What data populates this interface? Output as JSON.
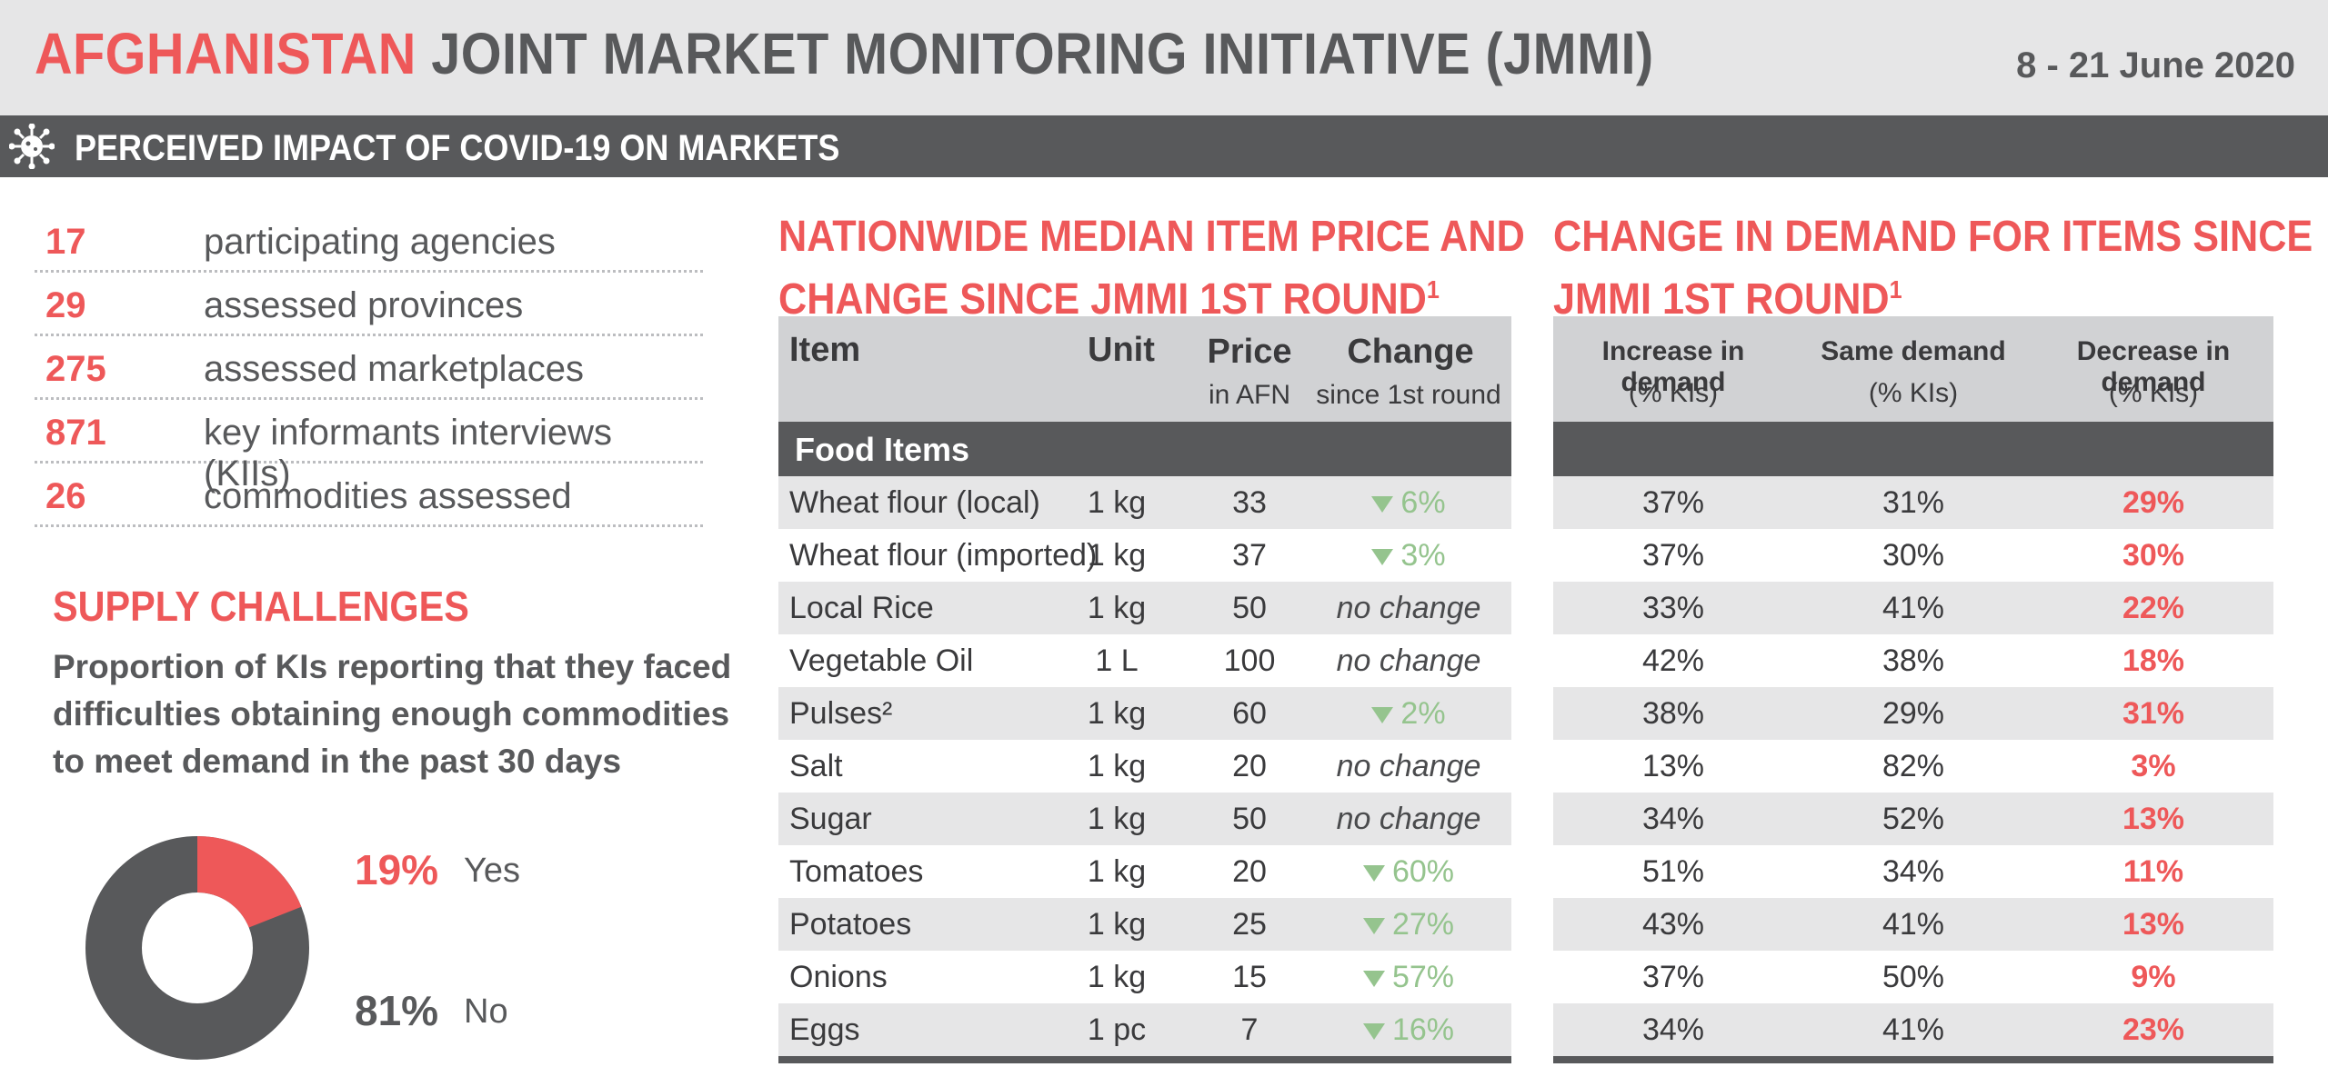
{
  "header": {
    "title_accent": "AFGHANISTAN",
    "title_rest": "JOINT MARKET MONITORING INITIATIVE (JMMI)",
    "date": "8 - 21 June 2020"
  },
  "section": {
    "title": "PERCEIVED IMPACT OF COVID-19 ON MARKETS",
    "icon": "virus-icon"
  },
  "stats": [
    {
      "value": "17",
      "label": "participating agencies"
    },
    {
      "value": "29",
      "label": "assessed provinces"
    },
    {
      "value": "275",
      "label": "assessed marketplaces"
    },
    {
      "value": "871",
      "label": "key informants interviews (KIIs)"
    },
    {
      "value": "26",
      "label": "commodities assessed"
    }
  ],
  "supply": {
    "title": "SUPPLY CHALLENGES",
    "description": "Proportion of KIs reporting that they faced difficulties obtaining enough commodities to meet demand in the past 30 days",
    "yes_pct": "19%",
    "yes_label": "Yes",
    "no_pct": "81%",
    "no_label": "No",
    "yes_value": 0.19,
    "colors": {
      "yes": "#ee5859",
      "no": "#58595b"
    }
  },
  "price_table": {
    "title_line1": "NATIONWIDE MEDIAN ITEM PRICE AND",
    "title_line2": "CHANGE SINCE JMMI 1ST ROUND",
    "title_sup": "1",
    "headers": {
      "item": "Item",
      "unit": "Unit",
      "price": "Price",
      "price_sub": "in AFN",
      "change": "Change",
      "change_sub": "since 1st round"
    },
    "section_label": "Food Items",
    "rows": [
      {
        "item": "Wheat flour (local)",
        "unit": "1 kg",
        "price": "33",
        "change": "6%",
        "decrease": true
      },
      {
        "item": "Wheat flour (imported)",
        "unit": "1 kg",
        "price": "37",
        "change": "3%",
        "decrease": true
      },
      {
        "item": "Local Rice",
        "unit": "1 kg",
        "price": "50",
        "change": "no change",
        "decrease": false
      },
      {
        "item": "Vegetable Oil",
        "unit": "1 L",
        "price": "100",
        "change": "no change",
        "decrease": false
      },
      {
        "item": "Pulses²",
        "unit": "1 kg",
        "price": "60",
        "change": "2%",
        "decrease": true
      },
      {
        "item": "Salt",
        "unit": "1 kg",
        "price": "20",
        "change": "no change",
        "decrease": false
      },
      {
        "item": "Sugar",
        "unit": "1 kg",
        "price": "50",
        "change": "no change",
        "decrease": false
      },
      {
        "item": "Tomatoes",
        "unit": "1 kg",
        "price": "20",
        "change": "60%",
        "decrease": true
      },
      {
        "item": "Potatoes",
        "unit": "1 kg",
        "price": "25",
        "change": "27%",
        "decrease": true
      },
      {
        "item": "Onions",
        "unit": "1 kg",
        "price": "15",
        "change": "57%",
        "decrease": true
      },
      {
        "item": "Eggs",
        "unit": "1 pc",
        "price": "7",
        "change": "16%",
        "decrease": true
      }
    ]
  },
  "demand_table": {
    "title_line1": "CHANGE IN DEMAND FOR ITEMS SINCE",
    "title_line2": "JMMI 1ST ROUND",
    "title_sup": "1",
    "headers": {
      "increase": "Increase in demand",
      "same": "Same demand",
      "decrease": "Decrease in demand",
      "sub": "(% KIs)"
    },
    "rows": [
      {
        "increase": "37%",
        "same": "31%",
        "decrease": "29%"
      },
      {
        "increase": "37%",
        "same": "30%",
        "decrease": "30%"
      },
      {
        "increase": "33%",
        "same": "41%",
        "decrease": "22%"
      },
      {
        "increase": "42%",
        "same": "38%",
        "decrease": "18%"
      },
      {
        "increase": "38%",
        "same": "29%",
        "decrease": "31%"
      },
      {
        "increase": "13%",
        "same": "82%",
        "decrease": "3%"
      },
      {
        "increase": "34%",
        "same": "52%",
        "decrease": "13%"
      },
      {
        "increase": "51%",
        "same": "34%",
        "decrease": "11%"
      },
      {
        "increase": "43%",
        "same": "41%",
        "decrease": "13%"
      },
      {
        "increase": "37%",
        "same": "50%",
        "decrease": "9%"
      },
      {
        "increase": "34%",
        "same": "41%",
        "decrease": "23%"
      }
    ]
  },
  "colors": {
    "accent": "#ee5859",
    "dark": "#58595b",
    "light_gray": "#e6e6e7",
    "header_gray": "#d1d2d4",
    "decrease_green": "#95c48e"
  }
}
